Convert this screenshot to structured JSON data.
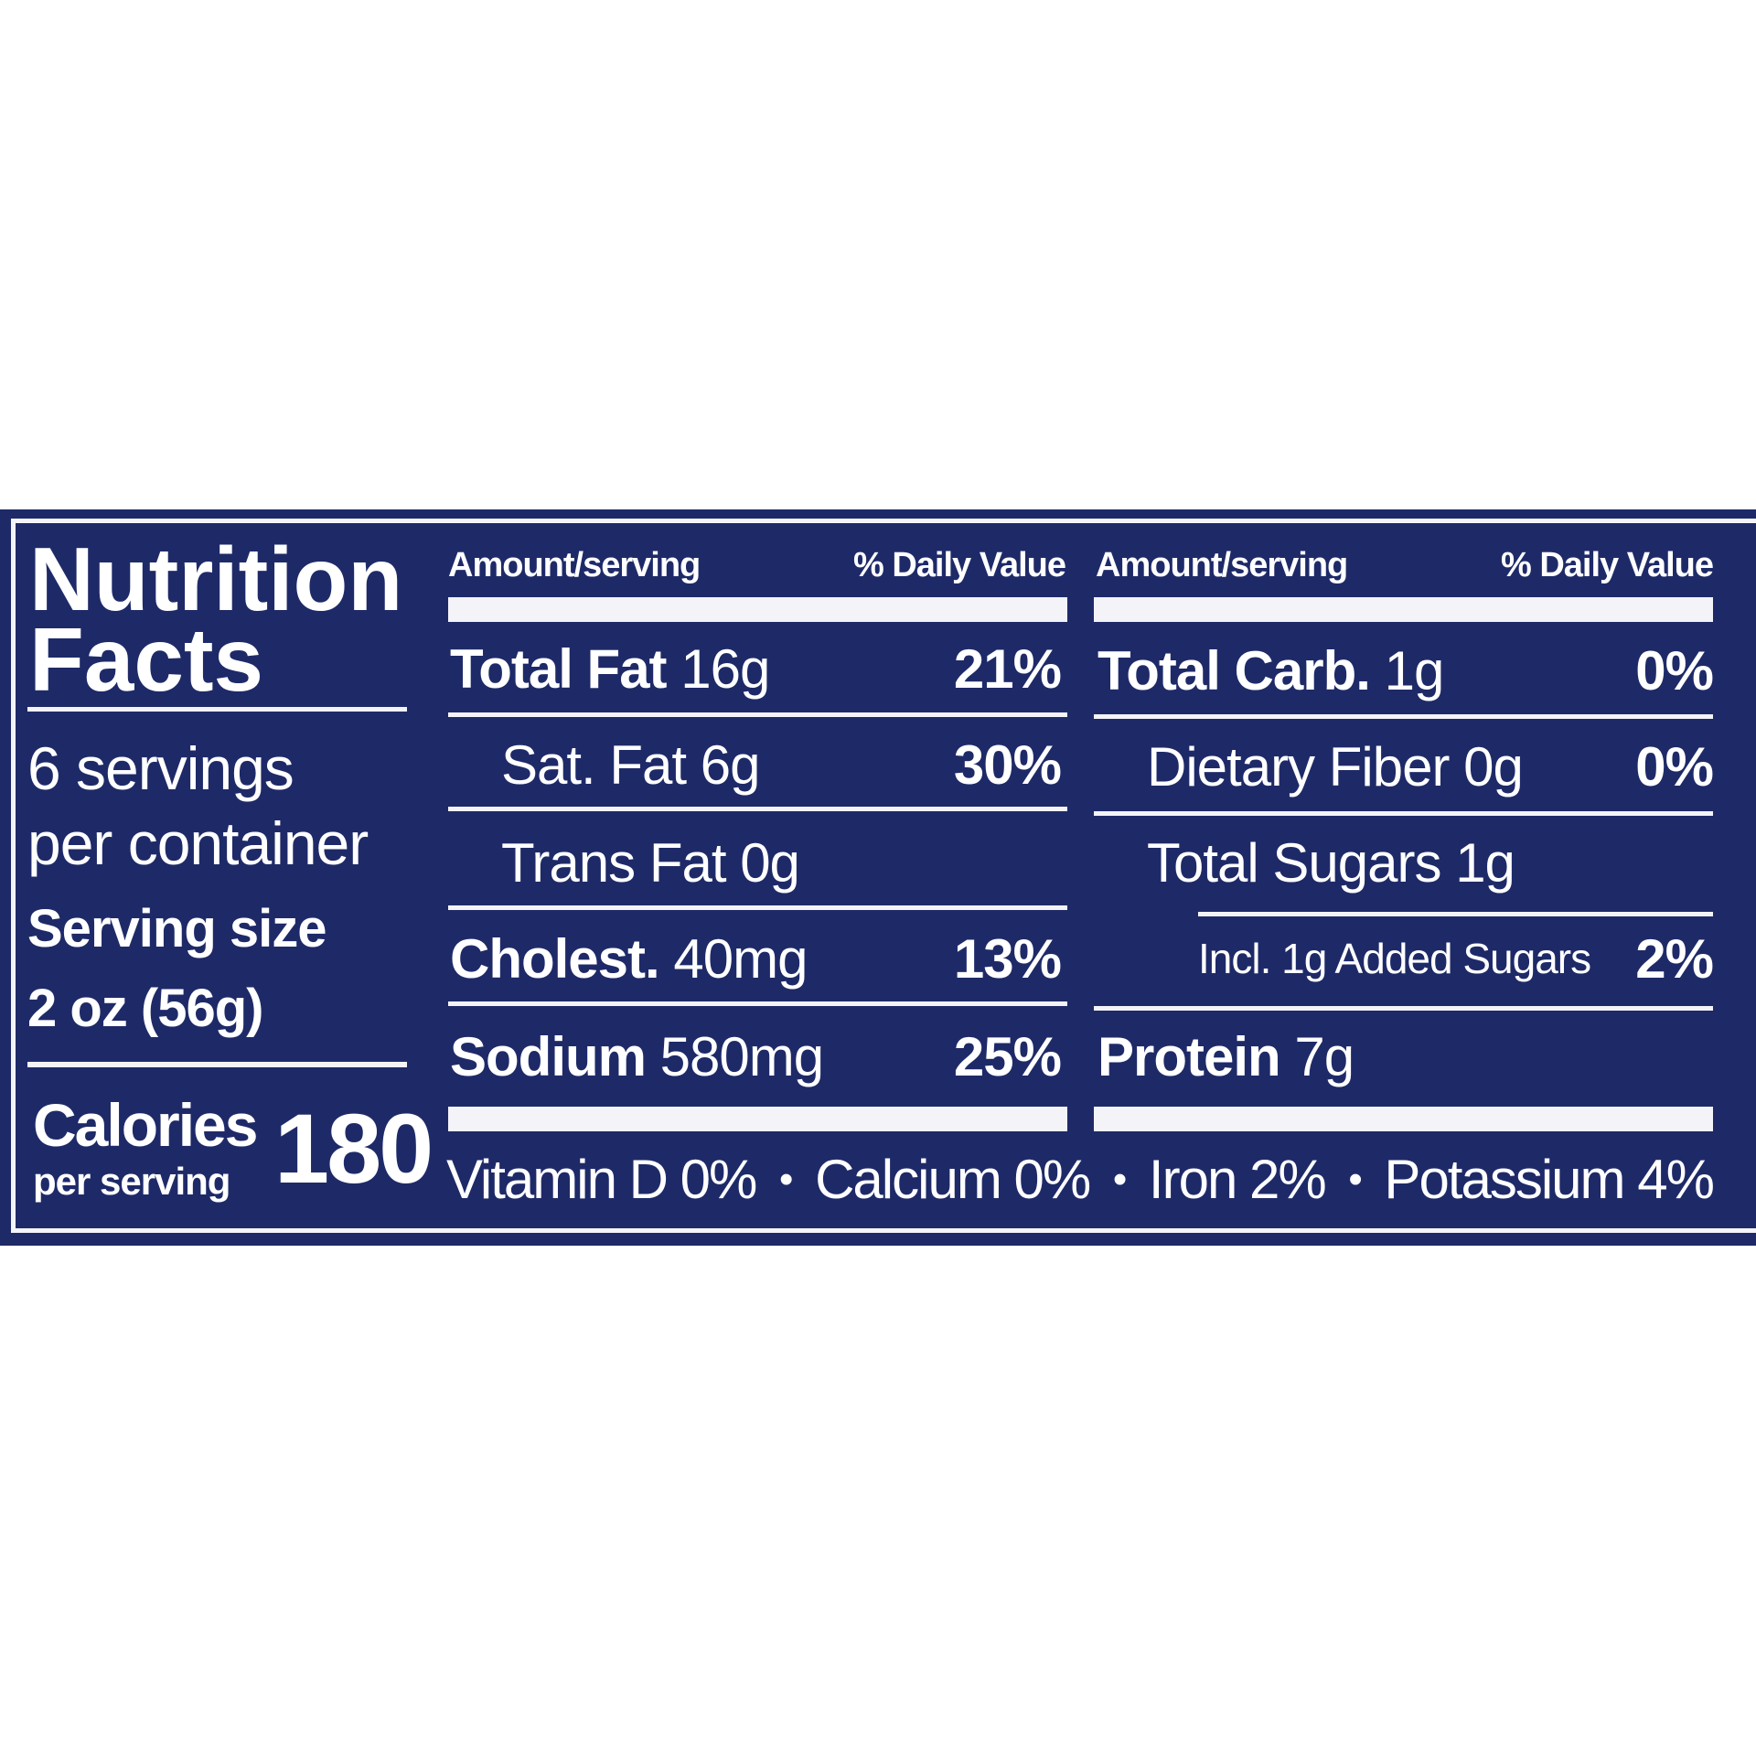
{
  "title": "Nutrition Facts",
  "title_line1": "Nutrition",
  "title_line2": "Facts",
  "servings": {
    "line1": "6 servings",
    "line2": "per container"
  },
  "serving_size": {
    "label": "Serving size",
    "value": "2 oz (56g)"
  },
  "calories": {
    "label": "Calories",
    "sub": "per serving",
    "value": "180"
  },
  "colors": {
    "panel": "#1e2a68",
    "text": "#ffffff"
  },
  "columns": [
    {
      "amount_header": "Amount/serving",
      "dv_header": "% Daily Value",
      "rows": [
        {
          "name": "Total Fat",
          "amount": "16g",
          "dv": "21%"
        },
        {
          "name": "Sat. Fat",
          "amount": "6g",
          "dv": "30%"
        },
        {
          "name": "Trans Fat",
          "amount": "0g",
          "dv": ""
        },
        {
          "name": "Cholest.",
          "amount": "40mg",
          "dv": "13%"
        },
        {
          "name": "Sodium",
          "amount": "580mg",
          "dv": "25%"
        }
      ]
    },
    {
      "amount_header": "Amount/serving",
      "dv_header": "% Daily Value",
      "rows": [
        {
          "name": "Total Carb.",
          "amount": "1g",
          "dv": "0%"
        },
        {
          "name": "Dietary Fiber",
          "amount": "0g",
          "dv": "0%"
        },
        {
          "name": "Total Sugars",
          "amount": "1g",
          "dv": ""
        },
        {
          "name": "Incl. 1g Added Sugars",
          "amount": "",
          "dv": "2%"
        },
        {
          "name": "Protein",
          "amount": "7g",
          "dv": ""
        }
      ]
    }
  ],
  "vitamins": [
    "Vitamin D 0%",
    "Calcium 0%",
    "Iron 2%",
    "Potassium 4%"
  ],
  "bullet": "•"
}
